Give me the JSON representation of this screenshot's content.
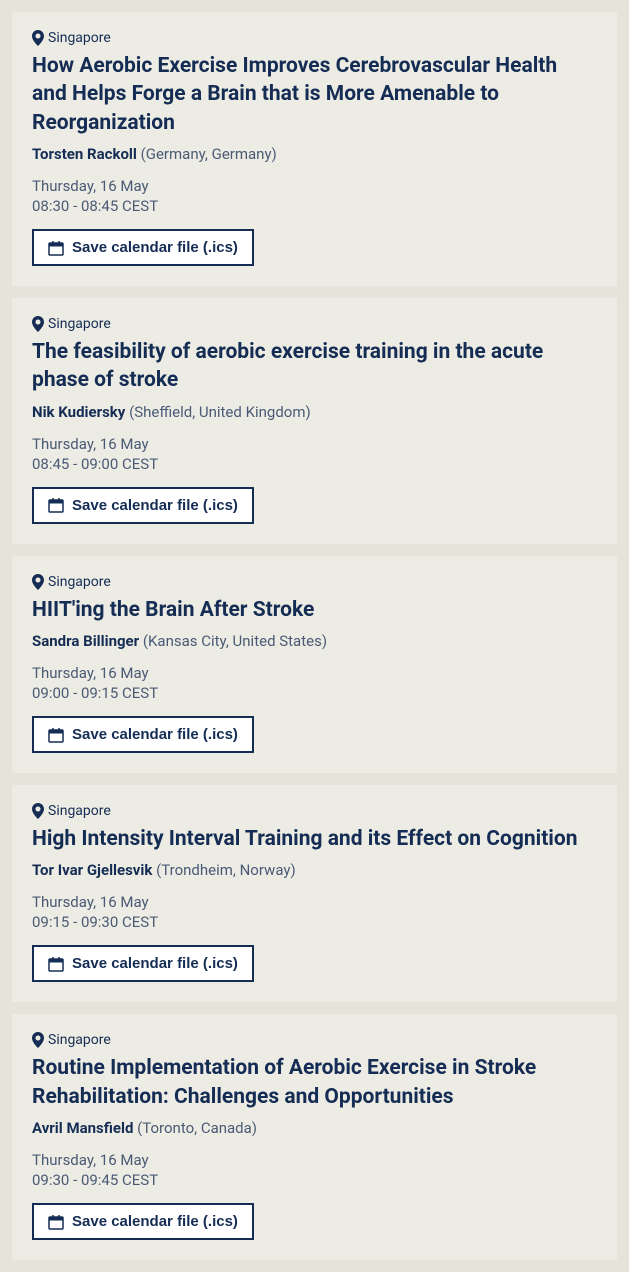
{
  "colors": {
    "page_bg": "#e6e3db",
    "card_bg": "#edece4",
    "text_primary": "#152d54",
    "text_secondary": "#4a5a75",
    "button_bg": "#ffffff",
    "button_border": "#152d54"
  },
  "save_button_label": "Save calendar file (.ics)",
  "sessions": [
    {
      "location": "Singapore",
      "title": "How Aerobic Exercise Improves Cerebrovascular Health and Helps Forge a Brain that is More Amenable to Reorganization",
      "speaker_name": "Torsten Rackoll",
      "speaker_location": "(Germany, Germany)",
      "date": "Thursday, 16 May",
      "time": "08:30 - 08:45 CEST"
    },
    {
      "location": "Singapore",
      "title": "The feasibility of aerobic exercise training in the acute phase of stroke",
      "speaker_name": "Nik Kudiersky",
      "speaker_location": "(Sheffield, United Kingdom)",
      "date": "Thursday, 16 May",
      "time": "08:45 - 09:00 CEST"
    },
    {
      "location": "Singapore",
      "title": "HIIT'ing the Brain After Stroke",
      "speaker_name": "Sandra Billinger",
      "speaker_location": "(Kansas City, United States)",
      "date": "Thursday, 16 May",
      "time": "09:00 - 09:15 CEST"
    },
    {
      "location": "Singapore",
      "title": "High Intensity Interval Training and its Effect on Cognition",
      "speaker_name": "Tor Ivar Gjellesvik",
      "speaker_location": "(Trondheim, Norway)",
      "date": "Thursday, 16 May",
      "time": "09:15 - 09:30 CEST"
    },
    {
      "location": "Singapore",
      "title": "Routine Implementation of Aerobic Exercise in Stroke Rehabilitation: Challenges and Opportunities",
      "speaker_name": "Avril Mansfield",
      "speaker_location": "(Toronto, Canada)",
      "date": "Thursday, 16 May",
      "time": "09:30 - 09:45 CEST"
    }
  ]
}
